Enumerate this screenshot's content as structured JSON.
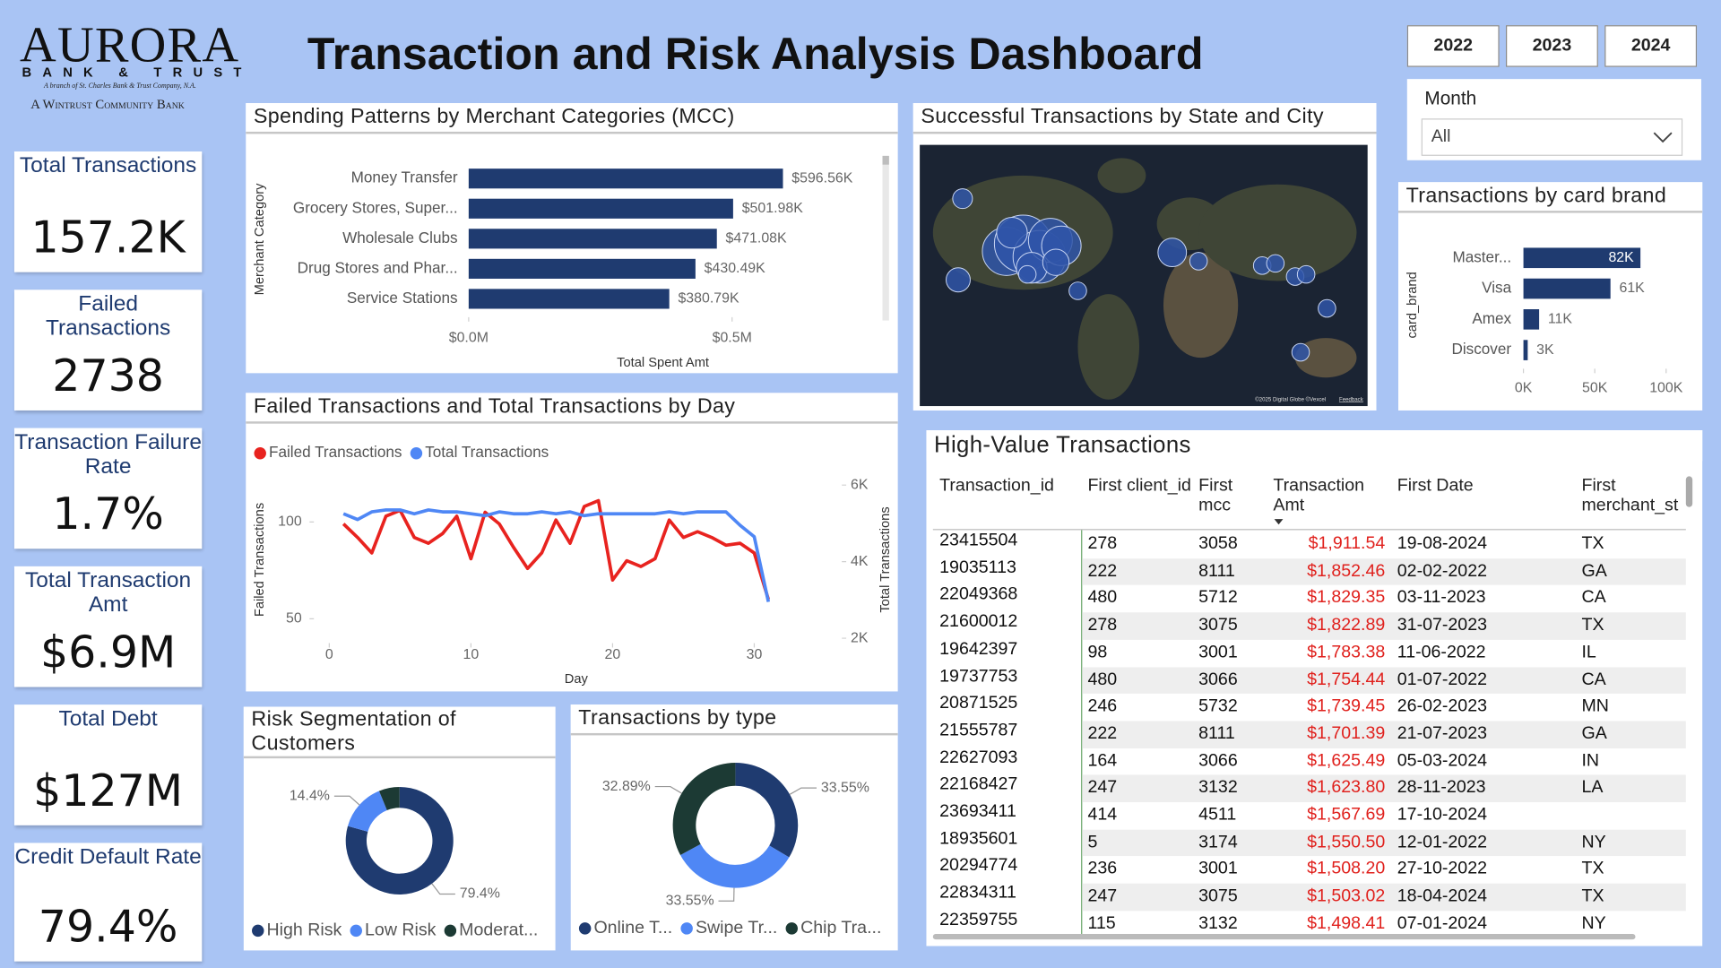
{
  "logo": {
    "name": "AURORA",
    "subtitle": "BANK & TRUST",
    "note": "A branch of St. Charles Bank & Trust Company, N.A.",
    "tagline": "A Wintrust Community Bank"
  },
  "header": {
    "title": "Transaction and Risk Analysis Dashboard"
  },
  "year_buttons": [
    "2022",
    "2023",
    "2024"
  ],
  "month_slicer": {
    "label": "Month",
    "value": "All"
  },
  "kpis": [
    {
      "label": "Total Transactions",
      "value": "157.2K"
    },
    {
      "label": "Failed Transactions",
      "value": "2738"
    },
    {
      "label": "Transaction Failure Rate",
      "value": "1.7%"
    },
    {
      "label": "Total Transaction Amt",
      "value": "$6.9M"
    },
    {
      "label": "Total Debt",
      "value": "$127M"
    },
    {
      "label": "Credit Default Rate",
      "value": "79.4%"
    }
  ],
  "map": {
    "title": "Successful Transactions by State and City",
    "attribution": "©2025 Digital Globe ©Vexcel",
    "link": "Feedback"
  },
  "table": {
    "title": "High-Value Transactions",
    "columns": [
      "Transaction_id",
      "First client_id",
      "First mcc",
      "Transaction Amt",
      "First Date",
      "First merchant_st"
    ],
    "rows": [
      [
        "23415504",
        "278",
        "3058",
        "$1,911.54",
        "19-08-2024",
        "TX"
      ],
      [
        "19035113",
        "222",
        "8111",
        "$1,852.46",
        "02-02-2022",
        "GA"
      ],
      [
        "22049368",
        "480",
        "5712",
        "$1,829.35",
        "03-11-2023",
        "CA"
      ],
      [
        "21600012",
        "278",
        "3075",
        "$1,822.89",
        "31-07-2023",
        "TX"
      ],
      [
        "19642397",
        "98",
        "3001",
        "$1,783.38",
        "11-06-2022",
        "IL"
      ],
      [
        "19737753",
        "480",
        "3066",
        "$1,754.44",
        "01-07-2022",
        "CA"
      ],
      [
        "20871525",
        "246",
        "5732",
        "$1,739.45",
        "26-02-2023",
        "MN"
      ],
      [
        "21555787",
        "222",
        "8111",
        "$1,701.39",
        "21-07-2023",
        "GA"
      ],
      [
        "22627093",
        "164",
        "3066",
        "$1,625.49",
        "05-03-2024",
        "IN"
      ],
      [
        "22168427",
        "247",
        "3132",
        "$1,623.80",
        "28-11-2023",
        "LA"
      ],
      [
        "23693411",
        "414",
        "4511",
        "$1,567.69",
        "17-10-2024",
        null
      ],
      [
        "18935601",
        "5",
        "3174",
        "$1,550.50",
        "12-01-2022",
        "NY"
      ],
      [
        "20294774",
        "236",
        "3001",
        "$1,508.20",
        "27-10-2022",
        "TX"
      ],
      [
        "22834311",
        "247",
        "3075",
        "$1,503.02",
        "18-04-2024",
        "TX"
      ],
      [
        "22359755",
        "115",
        "3132",
        "$1,498.41",
        "07-01-2024",
        "NY"
      ]
    ]
  },
  "chart_data": [
    {
      "type": "bar",
      "orientation": "horizontal",
      "title": "Spending Patterns by Merchant Categories (MCC)",
      "x_label": "Total Spent Amt",
      "y_label": "Merchant Category",
      "categories": [
        "Money Transfer",
        "Grocery Stores, Super...",
        "Wholesale Clubs",
        "Drug Stores and Phar...",
        "Service Stations"
      ],
      "values": [
        596560,
        501980,
        471080,
        430490,
        380790
      ],
      "value_labels": [
        "$596.56K",
        "$501.98K",
        "$471.08K",
        "$430.49K",
        "$380.79K"
      ],
      "color": "#1f3b70",
      "xlim": [
        0,
        750000
      ],
      "xticks": [
        {
          "value": 0,
          "label": "$0.0M"
        },
        {
          "value": 500000,
          "label": "$0.5M"
        }
      ]
    },
    {
      "type": "line",
      "title": "Failed Transactions and Total Transactions by Day",
      "x_label": "Day",
      "y_label": "Failed Transactions",
      "y2_label": "Total Transactions",
      "x": [
        1,
        2,
        3,
        4,
        5,
        6,
        7,
        8,
        9,
        10,
        11,
        12,
        13,
        14,
        15,
        16,
        17,
        18,
        19,
        20,
        21,
        22,
        23,
        24,
        25,
        26,
        27,
        28,
        29,
        30,
        31
      ],
      "series": [
        {
          "name": "Failed Transactions",
          "color": "#e8231f",
          "values": [
            99,
            92,
            84,
            103,
            106,
            92,
            89,
            94,
            103,
            81,
            105,
            99,
            87,
            76,
            84,
            101,
            89,
            108,
            111,
            70,
            80,
            77,
            81,
            101,
            92,
            95,
            92,
            88,
            89,
            84,
            60
          ]
        },
        {
          "name": "Total Transactions",
          "color": "#4f87f5",
          "axis": "y2",
          "values": [
            5250,
            5100,
            5300,
            5350,
            5350,
            5250,
            5350,
            5300,
            5300,
            5250,
            5200,
            5300,
            5250,
            5250,
            5300,
            5250,
            5300,
            5200,
            5250,
            5250,
            5250,
            5250,
            5250,
            5300,
            5250,
            5300,
            5300,
            5300,
            4950,
            4650,
            2950
          ]
        }
      ],
      "xlim": [
        0,
        32
      ],
      "xticks": [
        0,
        10,
        20,
        30
      ],
      "ylim": [
        38,
        123
      ],
      "yticks": [
        50,
        100
      ],
      "y2lim": [
        1900,
        6200
      ],
      "y2ticks": [
        {
          "value": 2000,
          "label": "2K"
        },
        {
          "value": 4000,
          "label": "4K"
        },
        {
          "value": 6000,
          "label": "6K"
        }
      ],
      "legend": "top-left"
    },
    {
      "type": "bar",
      "orientation": "horizontal",
      "title": "Transactions by card brand",
      "y_label": "card_brand",
      "categories": [
        "Master...",
        "Visa",
        "Amex",
        "Discover"
      ],
      "values": [
        82000,
        61000,
        11000,
        3000
      ],
      "value_labels": [
        "82K",
        "61K",
        "11K",
        "3K"
      ],
      "color": "#1f3b70",
      "xlim": [
        0,
        100000
      ],
      "xticks": [
        {
          "value": 0,
          "label": "0K"
        },
        {
          "value": 50000,
          "label": "50K"
        },
        {
          "value": 100000,
          "label": "100K"
        }
      ]
    },
    {
      "type": "donut",
      "title": "Risk Segmentation of Customers",
      "categories": [
        "High Risk",
        "Low Risk",
        "Moderat..."
      ],
      "values": [
        79.4,
        14.4,
        6.2
      ],
      "value_labels": [
        "79.4%",
        "14.4%",
        null
      ],
      "colors": [
        "#1f3b70",
        "#4f87f5",
        "#1c3a34"
      ],
      "legend": "bottom"
    },
    {
      "type": "donut",
      "title": "Transactions by type",
      "categories": [
        "Online T...",
        "Swipe Tr...",
        "Chip Tra..."
      ],
      "values": [
        33.55,
        33.55,
        32.89
      ],
      "value_labels": [
        "33.55%",
        "33.55%",
        "32.89%"
      ],
      "colors": [
        "#1f3b70",
        "#4f87f5",
        "#1c3a34"
      ],
      "legend": "bottom"
    }
  ]
}
